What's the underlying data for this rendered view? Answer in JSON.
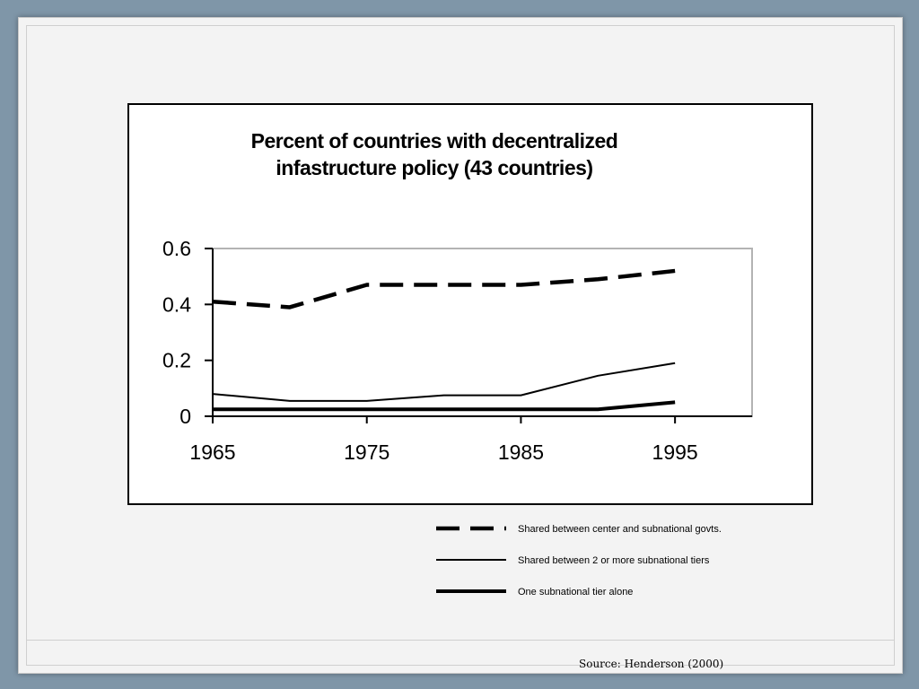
{
  "chart_data": {
    "type": "line",
    "title_lines": [
      "Percent of countries with decentralized",
      "infastructure policy (43 countries)"
    ],
    "x": [
      1965,
      1970,
      1975,
      1980,
      1985,
      1990,
      1995
    ],
    "x_tick_labels": [
      "1965",
      "1975",
      "1985",
      "1995"
    ],
    "y_tick_labels": [
      "0",
      "0.2",
      "0.4",
      "0.6"
    ],
    "xlim": [
      1965,
      2000
    ],
    "ylim": [
      0,
      0.6
    ],
    "series": [
      {
        "name": "Shared between center and subnational govts.",
        "style": "dashed-thick",
        "values": [
          0.41,
          0.39,
          0.47,
          0.47,
          0.47,
          0.49,
          0.52
        ]
      },
      {
        "name": "Shared between  2 or more subnational tiers",
        "style": "thin",
        "values": [
          0.08,
          0.055,
          0.055,
          0.075,
          0.075,
          0.145,
          0.19
        ]
      },
      {
        "name": "One subnational tier alone",
        "style": "thick",
        "values": [
          0.025,
          0.025,
          0.025,
          0.025,
          0.025,
          0.025,
          0.05
        ]
      }
    ],
    "grid": false,
    "legend_position": "below-right"
  },
  "source": "Source: Henderson (2000)",
  "colors": {
    "line": "#000000",
    "background": "#f3f3f3",
    "frame": "#7f96a8"
  }
}
